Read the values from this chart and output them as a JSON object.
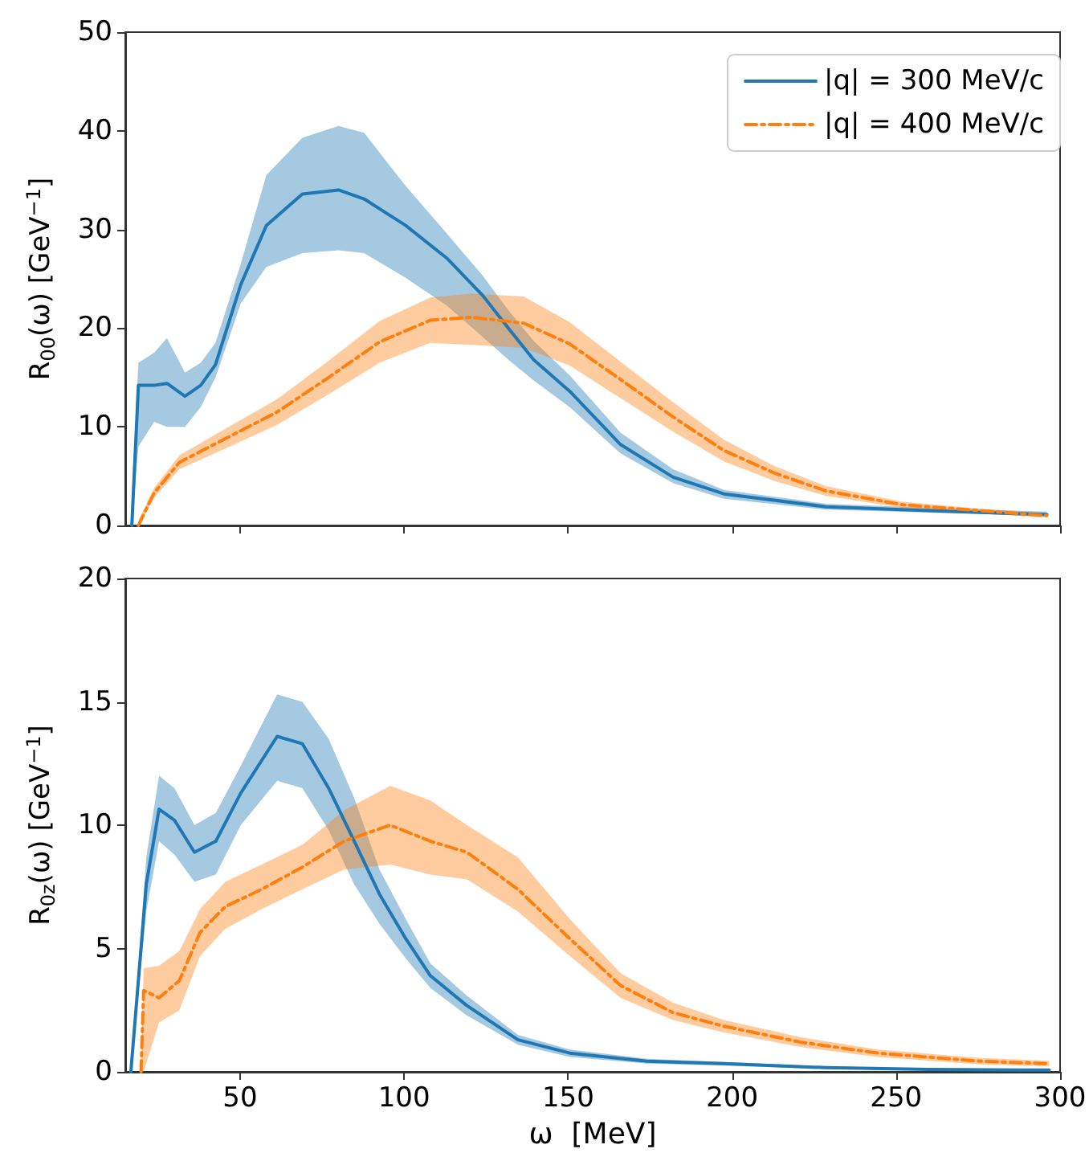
{
  "chart_data": [
    {
      "type": "line",
      "ylabel": "R$_{00}$(ω) [GeV$^{−1}$]",
      "xlim": [
        15,
        300
      ],
      "xticks": [
        50,
        100,
        150,
        200,
        250,
        300
      ],
      "ylim": [
        0,
        50
      ],
      "yticks": [
        0,
        10,
        20,
        30,
        40,
        50
      ],
      "tick_labels": "y",
      "legend": "top right",
      "grid": false,
      "series": [
        {
          "name": "|q| = 300 MeV/c",
          "color": "#1f77b4",
          "line_style": "solid",
          "x": [
            17,
            19,
            23.8,
            27.7,
            33.2,
            38,
            42.5,
            50.2,
            58,
            69,
            80,
            87.8,
            100.5,
            113,
            124,
            131.8,
            139.5,
            150.5,
            166,
            182,
            197.5,
            228.6,
            260,
            296
          ],
          "values": [
            0,
            14.2,
            14.2,
            14.4,
            13.1,
            14.2,
            16.3,
            24.4,
            30.4,
            33.6,
            34.0,
            33.1,
            30.4,
            27.1,
            23.3,
            20.0,
            16.8,
            13.6,
            8.2,
            4.9,
            3.2,
            1.9,
            1.5,
            1.1
          ],
          "lower": [
            0,
            8,
            10.5,
            10,
            10,
            12,
            15,
            22.5,
            26.2,
            27.6,
            27.9,
            27.6,
            25.1,
            22.3,
            19.1,
            16.8,
            14.7,
            12.0,
            7.3,
            4.3,
            2.7,
            1.6,
            1.3,
            1.0
          ],
          "upper": [
            3,
            16.5,
            17.5,
            19,
            15.5,
            16.5,
            18.5,
            26.5,
            35.5,
            39.3,
            40.5,
            39.8,
            34.4,
            29.6,
            25.3,
            21.8,
            18.7,
            15.2,
            9.4,
            5.7,
            3.6,
            2.2,
            1.8,
            1.4
          ]
        },
        {
          "name": "|q| = 400 MeV/c",
          "color": "#ff7f0e",
          "line_style": "dashed",
          "x": [
            19,
            23.8,
            31.5,
            45.5,
            61.3,
            77,
            92.5,
            108,
            120.6,
            136.5,
            150.5,
            166,
            182,
            197.5,
            213,
            228.6,
            252,
            275.6,
            296
          ],
          "values": [
            0,
            3.3,
            6.4,
            8.8,
            11.5,
            15.0,
            18.6,
            20.8,
            21.1,
            20.5,
            18.4,
            14.8,
            11.0,
            7.6,
            5.3,
            3.5,
            2.1,
            1.5,
            1.0
          ],
          "lower": [
            0,
            2.8,
            5.7,
            7.8,
            10.2,
            13.3,
            16.5,
            18.5,
            18.3,
            18.0,
            16.2,
            12.9,
            9.5,
            6.5,
            4.5,
            3.0,
            1.8,
            1.2,
            0.8
          ],
          "upper": [
            0.5,
            3.8,
            7.1,
            9.8,
            12.8,
            16.7,
            20.7,
            23.1,
            23.5,
            23.2,
            20.6,
            16.6,
            12.5,
            8.7,
            6.0,
            4.0,
            2.4,
            1.7,
            1.2
          ]
        }
      ]
    },
    {
      "type": "line",
      "xlabel": "ω  [MeV]",
      "ylabel": "R$_{0z}$(ω) [GeV$^{−1}$]",
      "xlim": [
        15,
        300
      ],
      "xticks": [
        50,
        100,
        150,
        200,
        250,
        300
      ],
      "ylim": [
        0,
        20
      ],
      "yticks": [
        0,
        5,
        10,
        15,
        20
      ],
      "grid": false,
      "series": [
        {
          "color": "#1f77b4",
          "line_style": "solid",
          "x": [
            16.7,
            21.4,
            25.3,
            30,
            36.1,
            42.6,
            50.2,
            61.3,
            69,
            77,
            84.8,
            92.5,
            100.5,
            108,
            119,
            134.7,
            150.5,
            174,
            197.5,
            228.6,
            260,
            296.7
          ],
          "values": [
            0,
            7.6,
            10.65,
            10.2,
            8.9,
            9.35,
            11.3,
            13.6,
            13.3,
            11.5,
            9.35,
            7.2,
            5.4,
            3.9,
            2.7,
            1.3,
            0.76,
            0.43,
            0.33,
            0.17,
            0.1,
            0.07
          ],
          "lower": [
            0,
            6.5,
            9.35,
            8.8,
            7.7,
            8.0,
            10.0,
            11.8,
            11.5,
            9.8,
            7.6,
            6.0,
            4.6,
            3.4,
            2.3,
            1.1,
            0.6,
            0.33,
            0.25,
            0.12,
            0.06,
            0.04
          ],
          "upper": [
            0,
            8.7,
            12.0,
            11.5,
            10.0,
            10.5,
            12.4,
            15.3,
            15.0,
            13.5,
            11.1,
            8.2,
            6.2,
            4.4,
            3.1,
            1.5,
            0.9,
            0.53,
            0.4,
            0.22,
            0.14,
            0.1
          ]
        },
        {
          "color": "#ff7f0e",
          "line_style": "dashed",
          "x": [
            19.8,
            20.6,
            25.3,
            31.5,
            37.8,
            45.5,
            56.6,
            69,
            81.7,
            95.8,
            108,
            119.2,
            134.7,
            150.5,
            166,
            182,
            197.5,
            221,
            244.4,
            275.6,
            296.7
          ],
          "values": [
            0,
            3.3,
            3.0,
            3.7,
            5.65,
            6.7,
            7.4,
            8.3,
            9.35,
            10.0,
            9.35,
            8.9,
            7.4,
            5.4,
            3.5,
            2.4,
            1.85,
            1.2,
            0.76,
            0.43,
            0.33
          ],
          "lower": [
            0,
            0,
            2.0,
            2.5,
            4.7,
            5.8,
            6.6,
            7.4,
            8.2,
            8.4,
            8.0,
            7.8,
            6.5,
            4.7,
            3.0,
            2.1,
            1.6,
            1.0,
            0.6,
            0.3,
            0.22
          ],
          "upper": [
            0,
            4.2,
            4.3,
            4.9,
            6.6,
            7.7,
            8.4,
            9.2,
            10.6,
            11.6,
            11.0,
            10.0,
            8.7,
            6.2,
            4.0,
            2.8,
            2.1,
            1.4,
            0.9,
            0.56,
            0.45
          ]
        }
      ]
    }
  ]
}
